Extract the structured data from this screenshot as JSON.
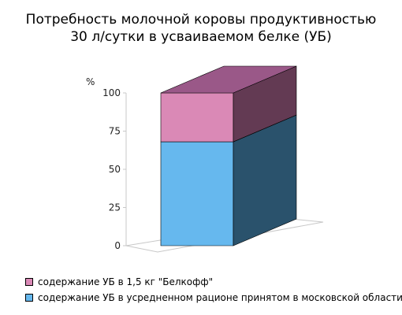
{
  "chart_data": {
    "type": "bar",
    "title": [
      "Потребность молочной коровы продуктивностью",
      "30 л/сутки в усваиваемом белке (УБ)"
    ],
    "ylabel": "%",
    "ylim": [
      0,
      100
    ],
    "yticks": [
      0,
      25,
      50,
      75,
      100
    ],
    "stacked": true,
    "categories": [
      ""
    ],
    "series": [
      {
        "name": "содержание УБ в усредненном рационе принятом в московской области",
        "values": [
          68
        ],
        "color": "#66b8ee",
        "side_color": "#2a526c",
        "top_color": "#2a526c"
      },
      {
        "name": "содержание УБ в 1,5 кг \"Белкофф\"",
        "values": [
          32
        ],
        "color": "#da89b6",
        "side_color": "#633a53",
        "top_color": "#9a5888"
      }
    ],
    "legend_order": [
      1,
      0
    ],
    "legend_position": "bottom-left",
    "grid": false
  }
}
